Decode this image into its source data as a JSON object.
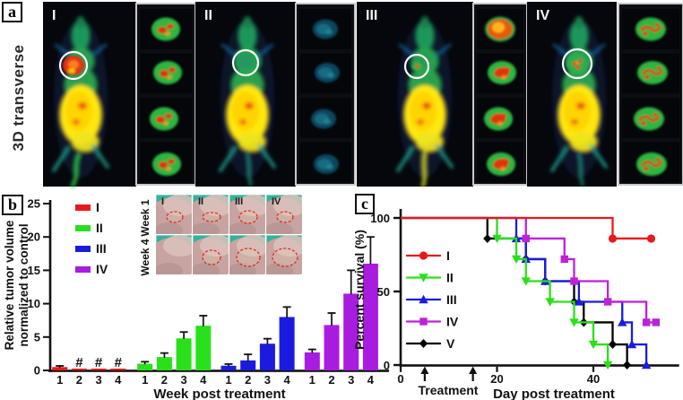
{
  "panel_a": {
    "label": "a",
    "side_label": "3D transverse",
    "groups": [
      {
        "label": "I",
        "tumor": "hot",
        "slice_style": "green-red",
        "tail": "long"
      },
      {
        "label": "II",
        "tumor": "faint",
        "slice_style": "faint-blue",
        "tail": "short"
      },
      {
        "label": "III",
        "tumor": "small",
        "slice_style": "hot-first",
        "tail": "yellow"
      },
      {
        "label": "IV",
        "tumor": "green-spots",
        "slice_style": "green-streak",
        "tail": "short"
      }
    ]
  },
  "panel_b": {
    "label": "b"
  },
  "panel_c": {
    "label": "c"
  },
  "chart_data": [
    {
      "type": "bar",
      "panel": "b",
      "title": "",
      "xlabel": "Week post treatment",
      "ylabel_lines": [
        "Relative tumor volume",
        "normalized to control"
      ],
      "ylim": [
        0,
        25
      ],
      "yticks": [
        0,
        5,
        10,
        15,
        20,
        25
      ],
      "week_labels": [
        "1",
        "2",
        "3",
        "4"
      ],
      "hash_symbol": "#",
      "groups": [
        {
          "name": "I",
          "color": "#e8191d",
          "values": [
            0.5,
            0.12,
            0.12,
            0.12
          ],
          "errors": [
            0.18,
            0,
            0,
            0
          ],
          "hash": [
            false,
            true,
            true,
            true
          ]
        },
        {
          "name": "II",
          "color": "#2ae01c",
          "values": [
            1.0,
            2.0,
            4.8,
            6.7
          ],
          "errors": [
            0.3,
            0.6,
            0.95,
            1.5
          ],
          "hash": [
            false,
            false,
            false,
            false
          ]
        },
        {
          "name": "III",
          "color": "#1b1bdf",
          "values": [
            0.7,
            1.5,
            4.0,
            8.0
          ],
          "errors": [
            0.25,
            0.9,
            0.75,
            1.5
          ],
          "hash": [
            false,
            false,
            false,
            false
          ]
        },
        {
          "name": "IV",
          "color": "#a81ce0",
          "values": [
            2.7,
            6.8,
            11.5,
            16.0
          ],
          "errors": [
            0.45,
            1.8,
            3.5,
            4.0
          ],
          "hash": [
            false,
            false,
            false,
            false
          ]
        }
      ],
      "inset": {
        "row_labels": [
          "Week 1",
          "Week 4"
        ],
        "col_labels": [
          "I",
          "II",
          "III",
          "IV"
        ],
        "tumor_ellipses": [
          [
            [
              9,
              6
            ],
            [
              10,
              5
            ],
            [
              10,
              7
            ],
            [
              9,
              6
            ]
          ],
          [
            [
              0,
              0
            ],
            [
              10,
              8
            ],
            [
              13,
              10
            ],
            [
              14,
              10
            ]
          ]
        ]
      }
    },
    {
      "type": "line-step",
      "panel": "c",
      "title": "",
      "xlabel": "Day post treatment",
      "ylabel": "Percent survival (%)",
      "xticks": [
        0,
        20,
        40
      ],
      "yticks": [
        0,
        50,
        100
      ],
      "xlim": [
        0,
        58
      ],
      "ylim": [
        0,
        100
      ],
      "treatment_label": "Treatment",
      "treatment_arrow_days": [
        5,
        15
      ],
      "series": [
        {
          "name": "I",
          "color": "#e8191d",
          "marker": "circle",
          "end_marker": true,
          "points": [
            [
              0,
              100
            ],
            [
              44,
              100
            ],
            [
              44,
              86
            ],
            [
              52,
              86
            ]
          ]
        },
        {
          "name": "II",
          "color": "#2ae01c",
          "marker": "triangle-down",
          "end_marker": false,
          "points": [
            [
              0,
              100
            ],
            [
              20,
              100
            ],
            [
              20,
              86
            ],
            [
              24,
              86
            ],
            [
              24,
              72
            ],
            [
              26,
              72
            ],
            [
              26,
              57
            ],
            [
              31,
              57
            ],
            [
              31,
              43
            ],
            [
              36,
              43
            ],
            [
              36,
              29
            ],
            [
              40,
              29
            ],
            [
              40,
              14
            ],
            [
              43,
              14
            ],
            [
              43,
              0
            ]
          ]
        },
        {
          "name": "III",
          "color": "#1b1bdf",
          "marker": "triangle-up",
          "end_marker": false,
          "points": [
            [
              0,
              100
            ],
            [
              24,
              100
            ],
            [
              24,
              86
            ],
            [
              26,
              86
            ],
            [
              26,
              72
            ],
            [
              30,
              72
            ],
            [
              30,
              57
            ],
            [
              37,
              57
            ],
            [
              37,
              43
            ],
            [
              46,
              43
            ],
            [
              46,
              29
            ],
            [
              48,
              29
            ],
            [
              48,
              14
            ],
            [
              51,
              14
            ],
            [
              51,
              0
            ]
          ]
        },
        {
          "name": "IV",
          "color": "#bc22d8",
          "marker": "square",
          "end_marker": true,
          "points": [
            [
              0,
              100
            ],
            [
              26,
              100
            ],
            [
              26,
              86
            ],
            [
              34,
              86
            ],
            [
              34,
              72
            ],
            [
              36,
              72
            ],
            [
              36,
              57
            ],
            [
              43,
              57
            ],
            [
              43,
              43
            ],
            [
              51,
              43
            ],
            [
              51,
              29
            ],
            [
              53,
              29
            ]
          ]
        },
        {
          "name": "V",
          "color": "#000000",
          "marker": "diamond",
          "end_marker": false,
          "points": [
            [
              0,
              100
            ],
            [
              18,
              100
            ],
            [
              18,
              86
            ],
            [
              26,
              86
            ],
            [
              26,
              72
            ],
            [
              30,
              72
            ],
            [
              30,
              57
            ],
            [
              36,
              57
            ],
            [
              36,
              43
            ],
            [
              38,
              43
            ],
            [
              38,
              29
            ],
            [
              44,
              29
            ],
            [
              44,
              14
            ],
            [
              47,
              14
            ],
            [
              47,
              0
            ]
          ]
        }
      ]
    }
  ],
  "pet_palette": {
    "bg": "#05070c",
    "body_green": "#28a751",
    "hot_yellow": "#ffe70c",
    "hot_red": "#e8440e",
    "cold_blue": "#1a6fb5",
    "teal": "#1d9e8f"
  },
  "photo_palette": {
    "skin": "#c7a4a2",
    "skin_light": "#dcc2bd",
    "teal_bg": "#35b29b",
    "outline_red": "#e02a20"
  }
}
